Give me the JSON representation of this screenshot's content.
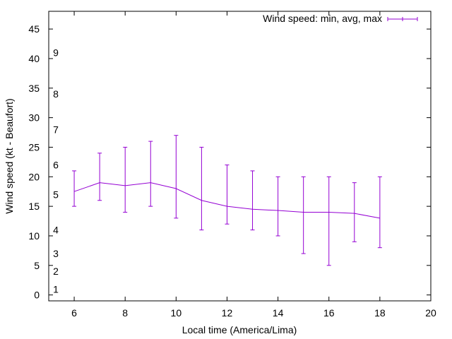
{
  "chart_data": {
    "type": "line",
    "xlabel": "Local time (America/Lima)",
    "ylabel": "Wind speed (kt - Beaufort)",
    "xlim": [
      5,
      20
    ],
    "ylim": [
      -1,
      48
    ],
    "x_ticks": [
      "6",
      "8",
      "10",
      "12",
      "14",
      "16",
      "18",
      "20"
    ],
    "y_ticks": [
      "0",
      "5",
      "10",
      "15",
      "20",
      "25",
      "30",
      "35",
      "40",
      "45"
    ],
    "beaufort_scale": [
      {
        "label": "1",
        "at": 1
      },
      {
        "label": "2",
        "at": 4
      },
      {
        "label": "3",
        "at": 7
      },
      {
        "label": "4",
        "at": 11
      },
      {
        "label": "5",
        "at": 17
      },
      {
        "label": "6",
        "at": 22
      },
      {
        "label": "7",
        "at": 28
      },
      {
        "label": "8",
        "at": 34
      },
      {
        "label": "9",
        "at": 41
      }
    ],
    "series": [
      {
        "name": "Wind speed: min, avg, max",
        "color": "#9400d3",
        "x": [
          6,
          7,
          8,
          9,
          10,
          11,
          12,
          13,
          14,
          15,
          16,
          17,
          18
        ],
        "avg": [
          17.5,
          19,
          18.5,
          19,
          18,
          16,
          15,
          14.5,
          14.3,
          14,
          14,
          13.8,
          13
        ],
        "min": [
          15,
          16,
          14,
          15,
          13,
          11,
          12,
          11,
          10,
          7,
          5,
          9,
          8
        ],
        "max": [
          21,
          24,
          25,
          26,
          27,
          25,
          22,
          21,
          20,
          20,
          20,
          19,
          20
        ]
      }
    ]
  }
}
